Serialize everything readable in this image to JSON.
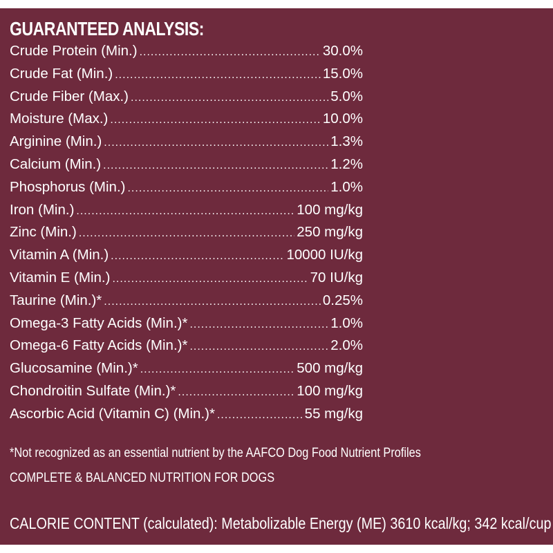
{
  "title": "GUARANTEED ANALYSIS:",
  "analysis": [
    {
      "label": "Crude Protein (Min.)",
      "value": "30.0%"
    },
    {
      "label": "Crude Fat (Min.)",
      "value": "15.0%"
    },
    {
      "label": "Crude Fiber (Max.)",
      "value": "5.0%"
    },
    {
      "label": "Moisture (Max.)",
      "value": "10.0%"
    },
    {
      "label": "Arginine (Min.)",
      "value": "1.3%"
    },
    {
      "label": "Calcium (Min.)",
      "value": "1.2%"
    },
    {
      "label": "Phosphorus (Min.)",
      "value": "1.0%"
    },
    {
      "label": "Iron (Min.)",
      "value": "100 mg/kg"
    },
    {
      "label": "Zinc (Min.)",
      "value": "250 mg/kg"
    },
    {
      "label": "Vitamin A (Min.)",
      "value": "10000 IU/kg"
    },
    {
      "label": "Vitamin E (Min.)",
      "value": "70 IU/kg"
    },
    {
      "label": "Taurine (Min.)*",
      "value": "0.25%"
    },
    {
      "label": "Omega-3 Fatty Acids (Min.)*",
      "value": "1.0%"
    },
    {
      "label": "Omega-6 Fatty Acids (Min.)*",
      "value": "2.0%"
    },
    {
      "label": "Glucosamine (Min.)*",
      "value": "500 mg/kg"
    },
    {
      "label": "Chondroitin Sulfate (Min.)*",
      "value": "100 mg/kg"
    },
    {
      "label": "Ascorbic Acid (Vitamin C) (Min.)*",
      "value": "55 mg/kg"
    }
  ],
  "footnote": "*Not recognized as an essential nutrient by the AAFCO Dog Food Nutrient Profiles",
  "statement": "COMPLETE & BALANCED NUTRITION FOR DOGS",
  "calorie": "CALORIE CONTENT (calculated): Metabolizable Energy (ME) 3610 kcal/kg; 342 kcal/cup",
  "colors": {
    "background": "#6e2a3d",
    "text": "#ffffff"
  }
}
